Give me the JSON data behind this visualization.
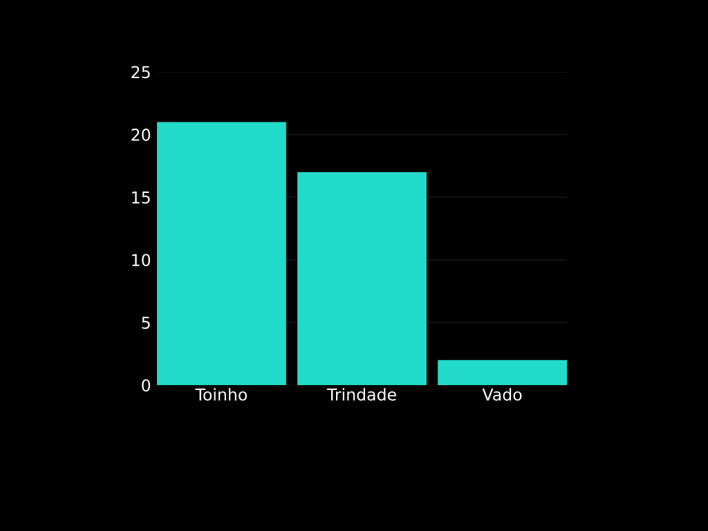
{
  "chart_data": {
    "type": "bar",
    "categories": [
      "Toinho",
      "Trindade",
      "Vado"
    ],
    "values": [
      21,
      17,
      2
    ],
    "color": "#22dbc9",
    "ylim": [
      0,
      25
    ],
    "yticks": [
      0,
      5,
      10,
      15,
      20,
      25
    ],
    "grid": "y",
    "legend": false
  }
}
